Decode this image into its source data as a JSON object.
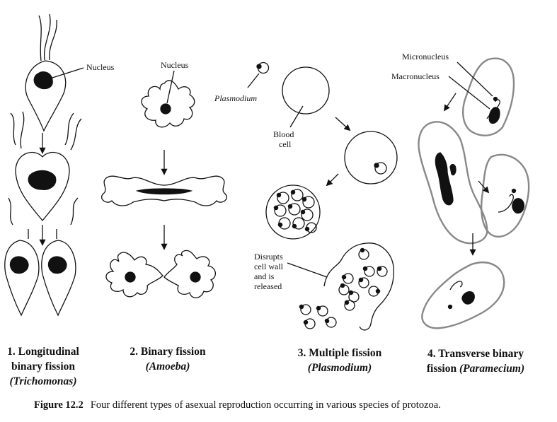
{
  "labels": {
    "nucleus_1": "Nucleus",
    "nucleus_2": "Nucleus",
    "plasmodium": "Plasmodium",
    "blood_cell_line1": "Blood",
    "blood_cell_line2": "cell",
    "micronucleus": "Micronucleus",
    "macronucleus": "Macronucleus",
    "disrupts": [
      "Disrupts",
      "cell wall",
      "and is",
      "released"
    ]
  },
  "panels": [
    {
      "line1": "1. Longitudinal",
      "line2": "binary fission",
      "line3": "(Trichomonas)"
    },
    {
      "line1": "2. Binary fission",
      "line2": "(Amoeba)"
    },
    {
      "line1": "3. Multiple fission",
      "line2": "(Plasmodium)"
    },
    {
      "line1": "4. Transverse binary",
      "line2a": "fission",
      "line2b": "(Paramecium)"
    }
  ],
  "caption": {
    "figure_number": "Figure 12.2",
    "text": "Four different types of asexual reproduction occurring in various species of protozoa."
  }
}
